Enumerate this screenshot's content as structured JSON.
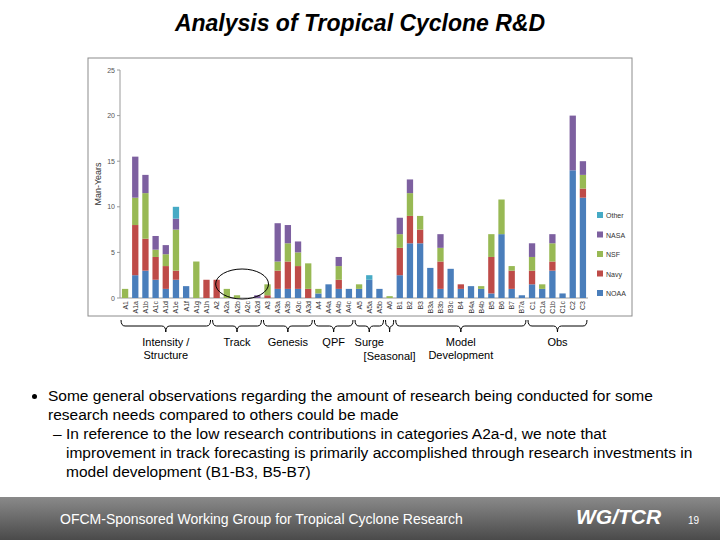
{
  "chart_data": {
    "type": "bar",
    "title": "Analysis of Tropical Cyclone R&D",
    "stacked": true,
    "legend": "right",
    "grid": false,
    "y_label": "Man-Years",
    "categories": [
      "A1",
      "A1a",
      "A1b",
      "A1c",
      "A1d",
      "A1e",
      "A1f",
      "A1g",
      "A1h",
      "A2",
      "A2a",
      "A2b",
      "A2c",
      "A2d",
      "A3",
      "A3a",
      "A3b",
      "A3c",
      "A3d",
      "A4",
      "A4a",
      "A4b",
      "A4c",
      "A5",
      "A5a",
      "A5b",
      "A6",
      "B1",
      "B2",
      "B3",
      "B3a",
      "B3b",
      "B3c",
      "B4",
      "B4a",
      "B4b",
      "B5",
      "B6",
      "B7",
      "B7a",
      "C1",
      "C1a",
      "C1b",
      "C1c",
      "C2",
      "C3"
    ],
    "series": [
      {
        "name": "NOAA",
        "color": "#4a7ebb",
        "values": [
          0,
          2.5,
          3,
          2,
          1,
          2,
          1.3,
          0,
          0,
          0,
          0,
          0,
          0,
          0,
          0,
          1,
          1,
          1,
          0,
          0.5,
          1.5,
          1,
          1,
          1,
          2,
          1,
          0,
          2.5,
          6,
          6,
          3.3,
          1,
          3.2,
          1,
          1.3,
          1,
          0.5,
          7,
          1,
          0.3,
          1.5,
          1,
          3,
          0.5,
          14,
          11
        ]
      },
      {
        "name": "Navy",
        "color": "#be4b48",
        "values": [
          0,
          5.5,
          3.5,
          2.5,
          2.5,
          1,
          0,
          0,
          2,
          2,
          0,
          0,
          0,
          0,
          0.3,
          2,
          3,
          2.5,
          1,
          0,
          0,
          1,
          0,
          0,
          0,
          0,
          0,
          3,
          3,
          1.5,
          0,
          3,
          0,
          0.5,
          0,
          0,
          4,
          0,
          2,
          0,
          1.5,
          0,
          1,
          0,
          0,
          1
        ]
      },
      {
        "name": "NSF",
        "color": "#98b954",
        "values": [
          1,
          3,
          5,
          0.8,
          1.3,
          4.5,
          0,
          4,
          0,
          0,
          1,
          0.3,
          0,
          0,
          1.2,
          1,
          2,
          1.5,
          2.8,
          0.5,
          0,
          1.5,
          0,
          0.5,
          0,
          0,
          0.2,
          1.5,
          2.5,
          1.5,
          0,
          1.5,
          0,
          0,
          0,
          0.3,
          2.5,
          3.8,
          0.5,
          0,
          1.5,
          0.5,
          2,
          0,
          0,
          1.5
        ]
      },
      {
        "name": "NASA",
        "color": "#7d60a0",
        "values": [
          0,
          4.5,
          2,
          1.5,
          1,
          1.2,
          0,
          0,
          0,
          0,
          0,
          0,
          0,
          0.3,
          0,
          4.2,
          2,
          1.2,
          0,
          0,
          0,
          1,
          0,
          0,
          0,
          0,
          0,
          1.8,
          1.5,
          0,
          0,
          1.5,
          0,
          0,
          0,
          0,
          0,
          0,
          0,
          0,
          1.5,
          0,
          1,
          0,
          6,
          1.5
        ]
      },
      {
        "name": "Other",
        "color": "#46aac5",
        "values": [
          0,
          0,
          0,
          0,
          0,
          1.3,
          0,
          0,
          0,
          0,
          0,
          0,
          0,
          0,
          0,
          0,
          0,
          0,
          0,
          0,
          0,
          0,
          0,
          0,
          0.5,
          0,
          0,
          0,
          0,
          0,
          0,
          0,
          0,
          0,
          0,
          0,
          0,
          0,
          0,
          0,
          0,
          0,
          0,
          0,
          0,
          0
        ]
      }
    ],
    "ylim": [
      0,
      25
    ],
    "yticks": [
      0,
      5,
      10,
      15,
      20,
      25
    ],
    "groups": [
      {
        "label": "Intensity / Structure",
        "from": "A1",
        "to": "A1h"
      },
      {
        "label": "Track",
        "from": "A2",
        "to": "A2d"
      },
      {
        "label": "Genesis",
        "from": "A3",
        "to": "A3d"
      },
      {
        "label": "QPF",
        "from": "A4",
        "to": "A4c"
      },
      {
        "label": "Surge",
        "from": "A5",
        "to": "A5b"
      },
      {
        "label": "[Seasonal]",
        "from": "A6",
        "to": "A6"
      },
      {
        "label": "Model Development",
        "from": "B1",
        "to": "B7a"
      },
      {
        "label": "Obs",
        "from": "C1",
        "to": "C3"
      }
    ]
  },
  "slide": {
    "bullets": [
      {
        "text": "Some general observations regarding the amount of research being conducted for some research needs compared to others could be made",
        "sub": [
          "In reference to the low research contributions in categories A2a-d, we note that improvement in track forecasting is primarily accomplished through research investments in model development (B1-B3, B5-B7)"
        ]
      }
    ],
    "footer": {
      "text": "OFCM-Sponsored Working Group for Tropical Cyclone Research",
      "logo": "WG/TCR",
      "page": 19
    }
  }
}
